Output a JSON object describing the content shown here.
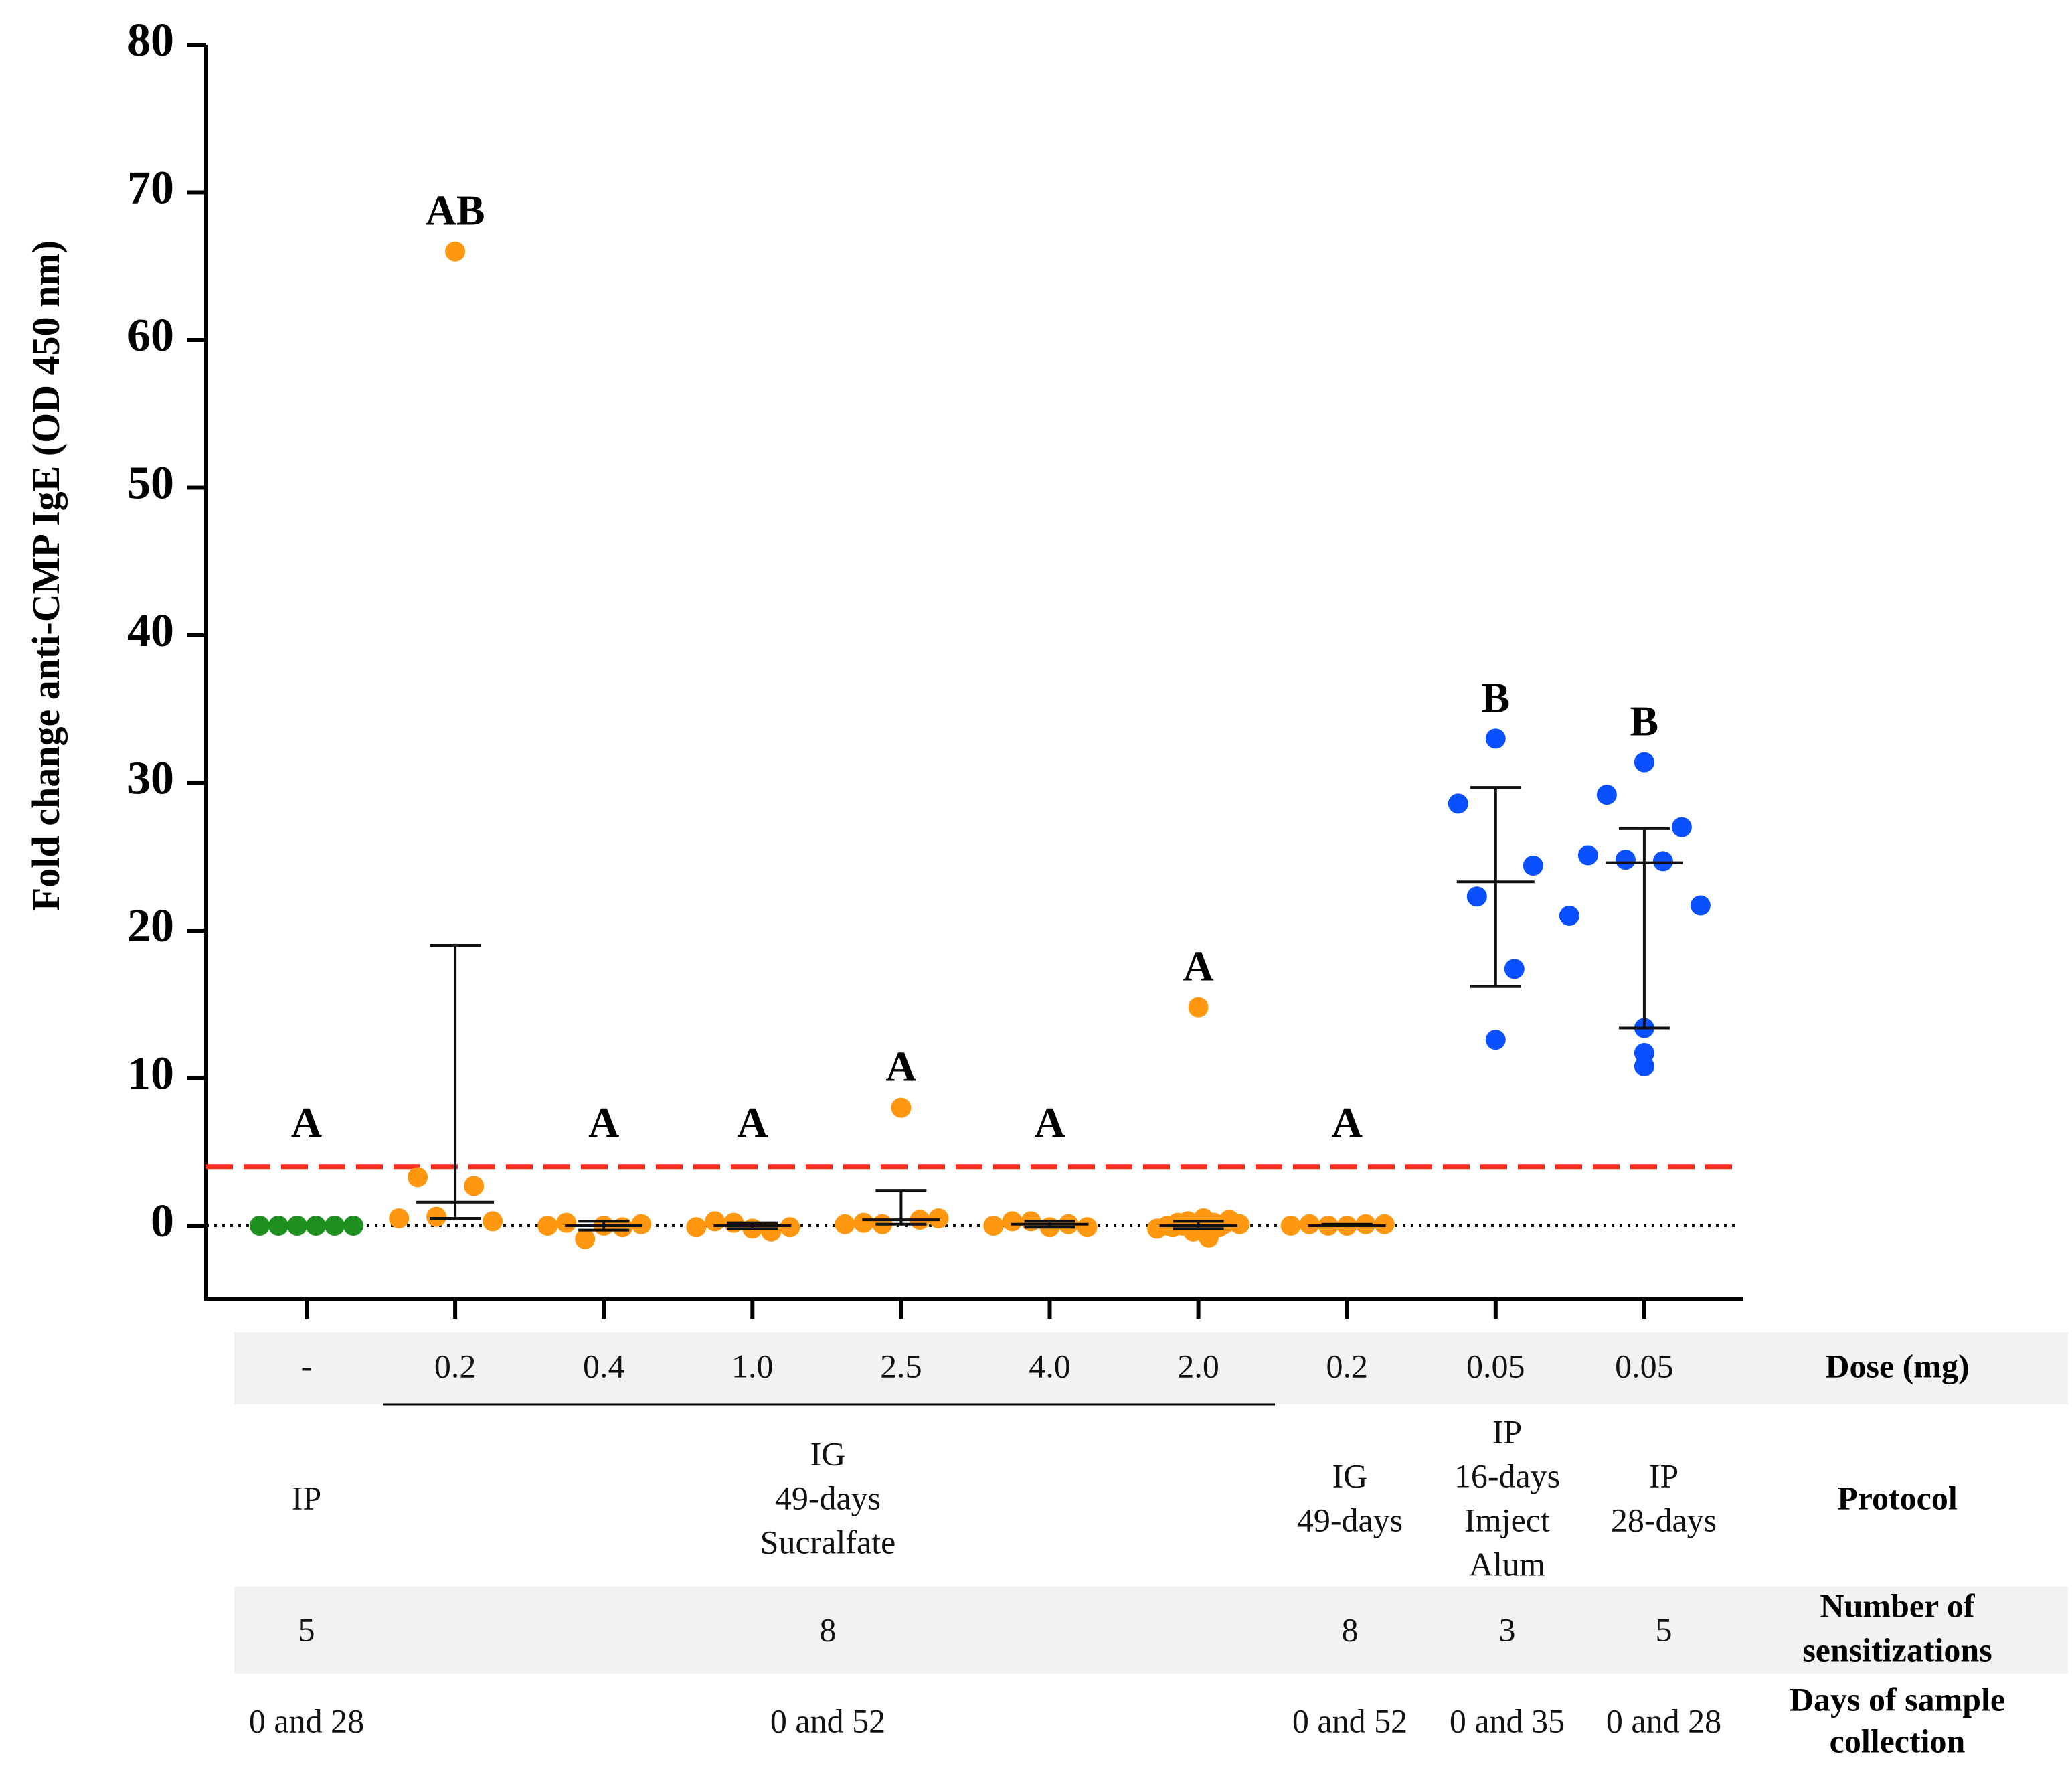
{
  "chart_data": {
    "type": "scatter",
    "ylabel": "Fold change anti-CMP IgE (OD 450 nm)",
    "ylim": [
      -5,
      80
    ],
    "yticks": [
      0,
      10,
      20,
      30,
      40,
      50,
      60,
      70,
      80
    ],
    "threshold": {
      "value": 4,
      "color": "#ff2a1a",
      "style": "dashed"
    },
    "baseline": {
      "value": 0,
      "style": "dotted"
    },
    "colors": {
      "control": "#1f8f1f",
      "ig": "#ff9710",
      "ip": "#0a50ff"
    },
    "groups": [
      {
        "letter": "A",
        "color_key": "control",
        "points": [
          0,
          0,
          0,
          0,
          0,
          0
        ]
      },
      {
        "letter": "AB",
        "color_key": "ig",
        "points": [
          66,
          3.3,
          0.3,
          0.6,
          2.7,
          0.5
        ],
        "median": 1.6,
        "err_low": 0.5,
        "err_high": 19
      },
      {
        "letter": "A",
        "color_key": "ig",
        "points": [
          0,
          0.2,
          0.1,
          -0.9,
          -0.1,
          0.0
        ],
        "median": 0,
        "err_low": -0.3,
        "err_high": 0.3
      },
      {
        "letter": "A",
        "color_key": "ig",
        "points": [
          -0.2,
          0.3,
          -0.1,
          0.2,
          -0.4,
          -0.1
        ],
        "median": 0,
        "err_low": -0.2,
        "err_high": 0.2
      },
      {
        "letter": "A",
        "color_key": "ig",
        "points": [
          8,
          0.2,
          0.5,
          0.1,
          0.4,
          0.1
        ],
        "median": 0.4,
        "err_low": 0.1,
        "err_high": 2.4
      },
      {
        "letter": "A",
        "color_key": "ig",
        "points": [
          -0.1,
          0.3,
          -0.1,
          0.3,
          0.1,
          0.0
        ],
        "median": 0.1,
        "err_low": -0.1,
        "err_high": 0.3
      },
      {
        "letter": "A",
        "color_key": "ig",
        "points": [
          14.8,
          0.2,
          -0.1,
          0.3,
          -0.8,
          0.0,
          0.4,
          -0.2,
          0.1,
          -0.4,
          0.5,
          0.0,
          0.2,
          -0.1,
          0.1
        ],
        "median": 0.0,
        "err_low": -0.2,
        "err_high": 0.3
      },
      {
        "letter": "A",
        "color_key": "ig",
        "points": [
          0,
          0.1,
          0.1,
          0.0,
          0.1,
          0.0
        ],
        "median": 0.0,
        "err_low": 0.0,
        "err_high": 0.1
      },
      {
        "letter": "B",
        "color_key": "ip",
        "points": [
          33,
          28.6,
          24.4,
          22.3,
          17.4,
          12.6
        ],
        "median": 23.3,
        "err_low": 16.2,
        "err_high": 29.7
      },
      {
        "letter": "B",
        "color_key": "ip",
        "points": [
          31.4,
          29.2,
          27,
          24.8,
          24.7,
          25.1,
          21.7,
          21,
          13.4,
          10.8,
          11.7
        ],
        "median": 24.6,
        "err_low": 13.4,
        "err_high": 26.9
      }
    ]
  },
  "table": {
    "headers": {
      "dose": "Dose (mg)",
      "protocol": "Protocol",
      "nsens_1": "Number of",
      "nsens_2": "sensitizations",
      "days_1": "Days of sample",
      "days_2": "collection"
    },
    "dose": [
      "-",
      "0.2",
      "0.4",
      "1.0",
      "2.5",
      "4.0",
      "2.0",
      "0.2",
      "0.05",
      "0.05"
    ],
    "protocol": {
      "col1": "IP",
      "ig_sucralfate": [
        "IG",
        "49-days",
        "Sucralfate"
      ],
      "ig_49": [
        "IG",
        "49-days"
      ],
      "ip_16": [
        "IP",
        "16-days",
        "Imject",
        "Alum"
      ],
      "ip_28": [
        "IP",
        "28-days"
      ]
    },
    "nsens": {
      "col1": "5",
      "ig_sucralfate": "8",
      "ig_49": "8",
      "ip_16": "3",
      "ip_28": "5"
    },
    "days": {
      "col1": "0 and 28",
      "ig_sucralfate": "0 and 52",
      "ig_49": "0 and 52",
      "ip_16": "0 and 35",
      "ip_28": "0 and 28"
    }
  }
}
